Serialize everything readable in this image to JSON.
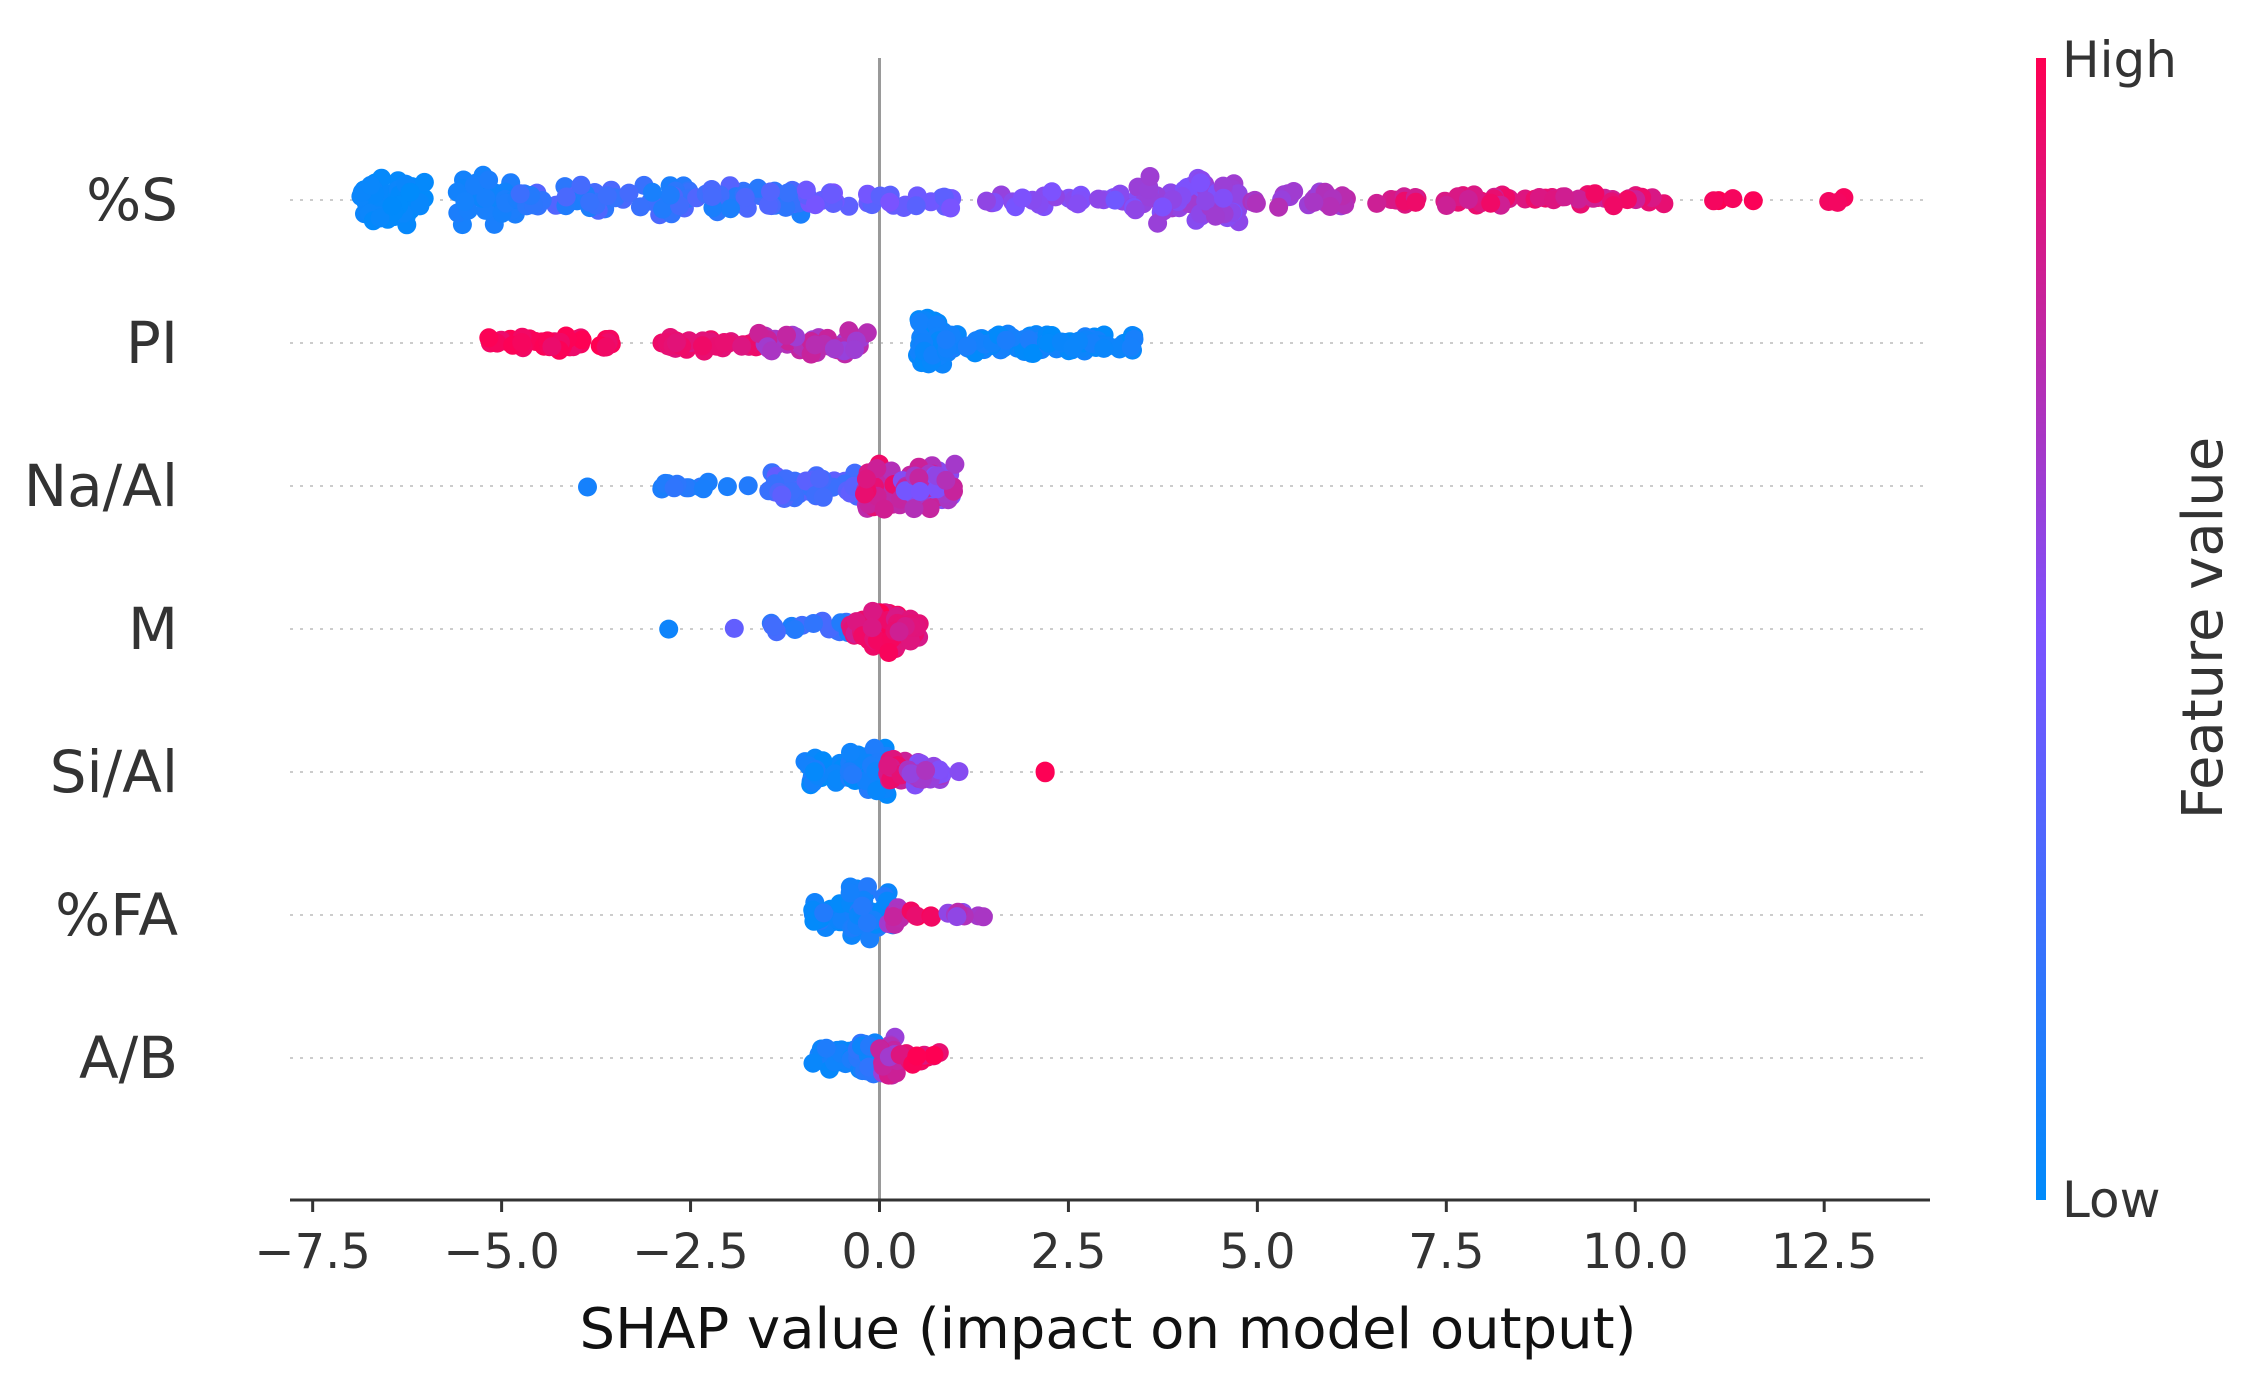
{
  "chart_data": {
    "type": "scatter",
    "subtype": "shap-beeswarm",
    "title": "",
    "xlabel": "SHAP value (impact on model output)",
    "xlim": [
      -7.8,
      13.9
    ],
    "xticks": [
      -7.5,
      -5.0,
      -2.5,
      0.0,
      2.5,
      5.0,
      7.5,
      10.0,
      12.5
    ],
    "xtick_labels": [
      "−7.5",
      "−5.0",
      "−2.5",
      "0.0",
      "2.5",
      "5.0",
      "7.5",
      "10.0",
      "12.5"
    ],
    "zero_line": 0.0,
    "colorbar": {
      "title": "Feature value",
      "high_label": "High",
      "low_label": "Low",
      "low_color": "#008bfb",
      "high_color": "#ff0052"
    },
    "features": [
      {
        "name": "%S",
        "clusters": [
          {
            "from": -6.9,
            "to": -6.0,
            "n": 70,
            "fv": [
              0.0,
              0.05
            ],
            "spread": 1.0
          },
          {
            "from": -5.6,
            "to": -4.8,
            "n": 40,
            "fv": [
              0.05,
              0.12
            ],
            "spread": 1.0
          },
          {
            "from": -4.8,
            "to": -1.0,
            "n": 90,
            "fv": [
              0.1,
              0.35
            ],
            "spread": 0.55
          },
          {
            "from": -1.0,
            "to": 1.0,
            "n": 30,
            "fv": [
              0.35,
              0.5
            ],
            "spread": 0.4
          },
          {
            "from": 1.4,
            "to": 3.3,
            "n": 25,
            "fv": [
              0.45,
              0.6
            ],
            "spread": 0.35
          },
          {
            "from": 3.3,
            "to": 4.8,
            "n": 70,
            "fv": [
              0.5,
              0.65
            ],
            "spread": 0.9
          },
          {
            "from": 4.8,
            "to": 6.2,
            "n": 25,
            "fv": [
              0.6,
              0.75
            ],
            "spread": 0.35
          },
          {
            "from": 6.4,
            "to": 10.4,
            "n": 55,
            "fv": [
              0.8,
              0.95
            ],
            "spread": 0.25
          },
          {
            "from": 11.0,
            "to": 11.6,
            "n": 4,
            "fv": [
              0.95,
              1.0
            ],
            "spread": 0.1
          },
          {
            "from": 12.5,
            "to": 12.9,
            "n": 3,
            "fv": [
              0.95,
              1.0
            ],
            "spread": 0.1
          }
        ]
      },
      {
        "name": "PI",
        "clusters": [
          {
            "from": -5.2,
            "to": -3.5,
            "n": 45,
            "fv": [
              0.92,
              1.0
            ],
            "spread": 0.3
          },
          {
            "from": -2.9,
            "to": -1.6,
            "n": 35,
            "fv": [
              0.85,
              0.95
            ],
            "spread": 0.3
          },
          {
            "from": -1.6,
            "to": -0.1,
            "n": 55,
            "fv": [
              0.6,
              0.8
            ],
            "spread": 0.45
          },
          {
            "from": 0.5,
            "to": 0.85,
            "n": 60,
            "fv": [
              0.0,
              0.08
            ],
            "spread": 1.0
          },
          {
            "from": 0.85,
            "to": 2.2,
            "n": 70,
            "fv": [
              0.0,
              0.12
            ],
            "spread": 0.45
          },
          {
            "from": 2.2,
            "to": 3.4,
            "n": 50,
            "fv": [
              0.0,
              0.1
            ],
            "spread": 0.35
          }
        ]
      },
      {
        "name": "Na/Al",
        "clusters": [
          {
            "from": -3.9,
            "to": -3.7,
            "n": 1,
            "fv": [
              0.05,
              0.1
            ],
            "spread": 0.05
          },
          {
            "from": -3.1,
            "to": -1.7,
            "n": 14,
            "fv": [
              0.1,
              0.2
            ],
            "spread": 0.15
          },
          {
            "from": -1.5,
            "to": -0.2,
            "n": 45,
            "fv": [
              0.2,
              0.4
            ],
            "spread": 0.55
          },
          {
            "from": -0.2,
            "to": 0.3,
            "n": 40,
            "fv": [
              0.7,
              0.95
            ],
            "spread": 1.0
          },
          {
            "from": 0.3,
            "to": 1.0,
            "n": 55,
            "fv": [
              0.45,
              0.8
            ],
            "spread": 0.85
          }
        ]
      },
      {
        "name": "M",
        "clusters": [
          {
            "from": -2.85,
            "to": -2.7,
            "n": 1,
            "fv": [
              0.05,
              0.1
            ],
            "spread": 0.05
          },
          {
            "from": -2.1,
            "to": -1.9,
            "n": 1,
            "fv": [
              0.35,
              0.4
            ],
            "spread": 0.05
          },
          {
            "from": -1.5,
            "to": -0.3,
            "n": 18,
            "fv": [
              0.1,
              0.3
            ],
            "spread": 0.3
          },
          {
            "from": -0.4,
            "to": 0.1,
            "n": 25,
            "fv": [
              0.8,
              0.95
            ],
            "spread": 0.45
          },
          {
            "from": -0.1,
            "to": 0.25,
            "n": 55,
            "fv": [
              0.85,
              1.0
            ],
            "spread": 1.0
          },
          {
            "from": 0.2,
            "to": 0.55,
            "n": 25,
            "fv": [
              0.8,
              0.95
            ],
            "spread": 0.5
          }
        ]
      },
      {
        "name": "Si/Al",
        "clusters": [
          {
            "from": -1.0,
            "to": -0.4,
            "n": 25,
            "fv": [
              0.0,
              0.15
            ],
            "spread": 0.55
          },
          {
            "from": -0.4,
            "to": 0.1,
            "n": 55,
            "fv": [
              0.0,
              0.15
            ],
            "spread": 1.0
          },
          {
            "from": 0.1,
            "to": 0.35,
            "n": 20,
            "fv": [
              0.75,
              0.95
            ],
            "spread": 0.6
          },
          {
            "from": 0.35,
            "to": 0.85,
            "n": 25,
            "fv": [
              0.5,
              0.7
            ],
            "spread": 0.5
          },
          {
            "from": 1.0,
            "to": 1.1,
            "n": 1,
            "fv": [
              0.5,
              0.55
            ],
            "spread": 0.05
          },
          {
            "from": 2.15,
            "to": 2.25,
            "n": 2,
            "fv": [
              0.95,
              1.0
            ],
            "spread": 0.05
          }
        ]
      },
      {
        "name": "%FA",
        "clusters": [
          {
            "from": -0.9,
            "to": -0.4,
            "n": 25,
            "fv": [
              0.0,
              0.15
            ],
            "spread": 0.5
          },
          {
            "from": -0.4,
            "to": 0.2,
            "n": 50,
            "fv": [
              0.0,
              0.15
            ],
            "spread": 1.0
          },
          {
            "from": 0.1,
            "to": 0.3,
            "n": 12,
            "fv": [
              0.6,
              0.8
            ],
            "spread": 0.4
          },
          {
            "from": 0.4,
            "to": 0.7,
            "n": 5,
            "fv": [
              0.9,
              1.0
            ],
            "spread": 0.15
          },
          {
            "from": 0.8,
            "to": 1.4,
            "n": 8,
            "fv": [
              0.55,
              0.75
            ],
            "spread": 0.15
          }
        ]
      },
      {
        "name": "A/B",
        "clusters": [
          {
            "from": -0.9,
            "to": -0.3,
            "n": 25,
            "fv": [
              0.0,
              0.12
            ],
            "spread": 0.5
          },
          {
            "from": -0.3,
            "to": 0.0,
            "n": 35,
            "fv": [
              0.05,
              0.2
            ],
            "spread": 1.0
          },
          {
            "from": 0.0,
            "to": 0.25,
            "n": 30,
            "fv": [
              0.6,
              0.85
            ],
            "spread": 0.8
          },
          {
            "from": 0.25,
            "to": 0.8,
            "n": 14,
            "fv": [
              0.85,
              1.0
            ],
            "spread": 0.25
          }
        ]
      }
    ]
  }
}
